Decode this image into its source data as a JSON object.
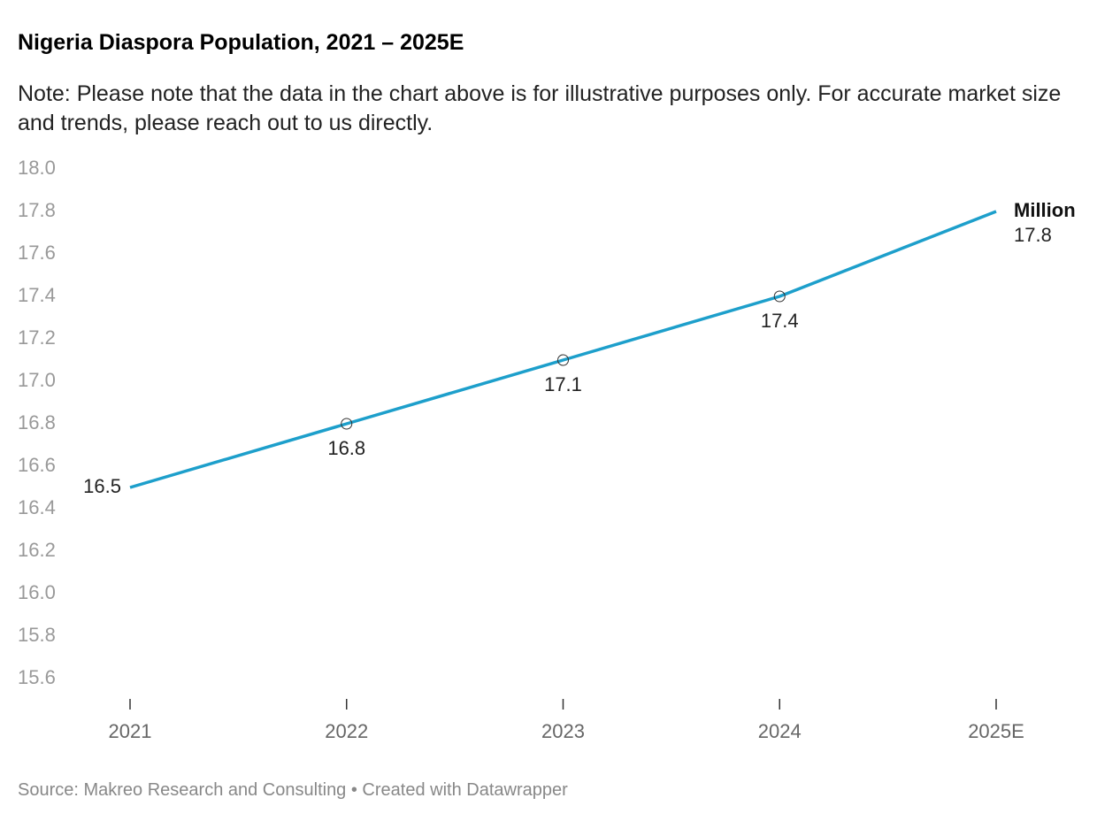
{
  "chart_data": {
    "type": "line",
    "title": "Nigeria Diaspora Population, 2021 – 2025E",
    "subtitle": "Note: Please note that the data in the chart above is for illustrative purposes only. For accurate market size and trends, please reach out to us directly.",
    "source": "Source: Makreo Research and Consulting • Created with Datawrapper",
    "categories": [
      "2021",
      "2022",
      "2023",
      "2024",
      "2025E"
    ],
    "series": [
      {
        "name": "Million",
        "color": "#1d9fcb",
        "values": [
          16.5,
          16.8,
          17.1,
          17.4,
          17.8
        ]
      }
    ],
    "ylim": [
      15.6,
      18.0
    ],
    "yticks": [
      {
        "value": 18.0,
        "label": "18.0"
      },
      17.8,
      17.6,
      17.4,
      17.2,
      {
        "value": 17.0,
        "label": "17.0"
      },
      16.8,
      16.6,
      16.4,
      16.2,
      {
        "value": 16.0,
        "label": "16.0"
      },
      15.8,
      15.6
    ],
    "grid": false
  }
}
